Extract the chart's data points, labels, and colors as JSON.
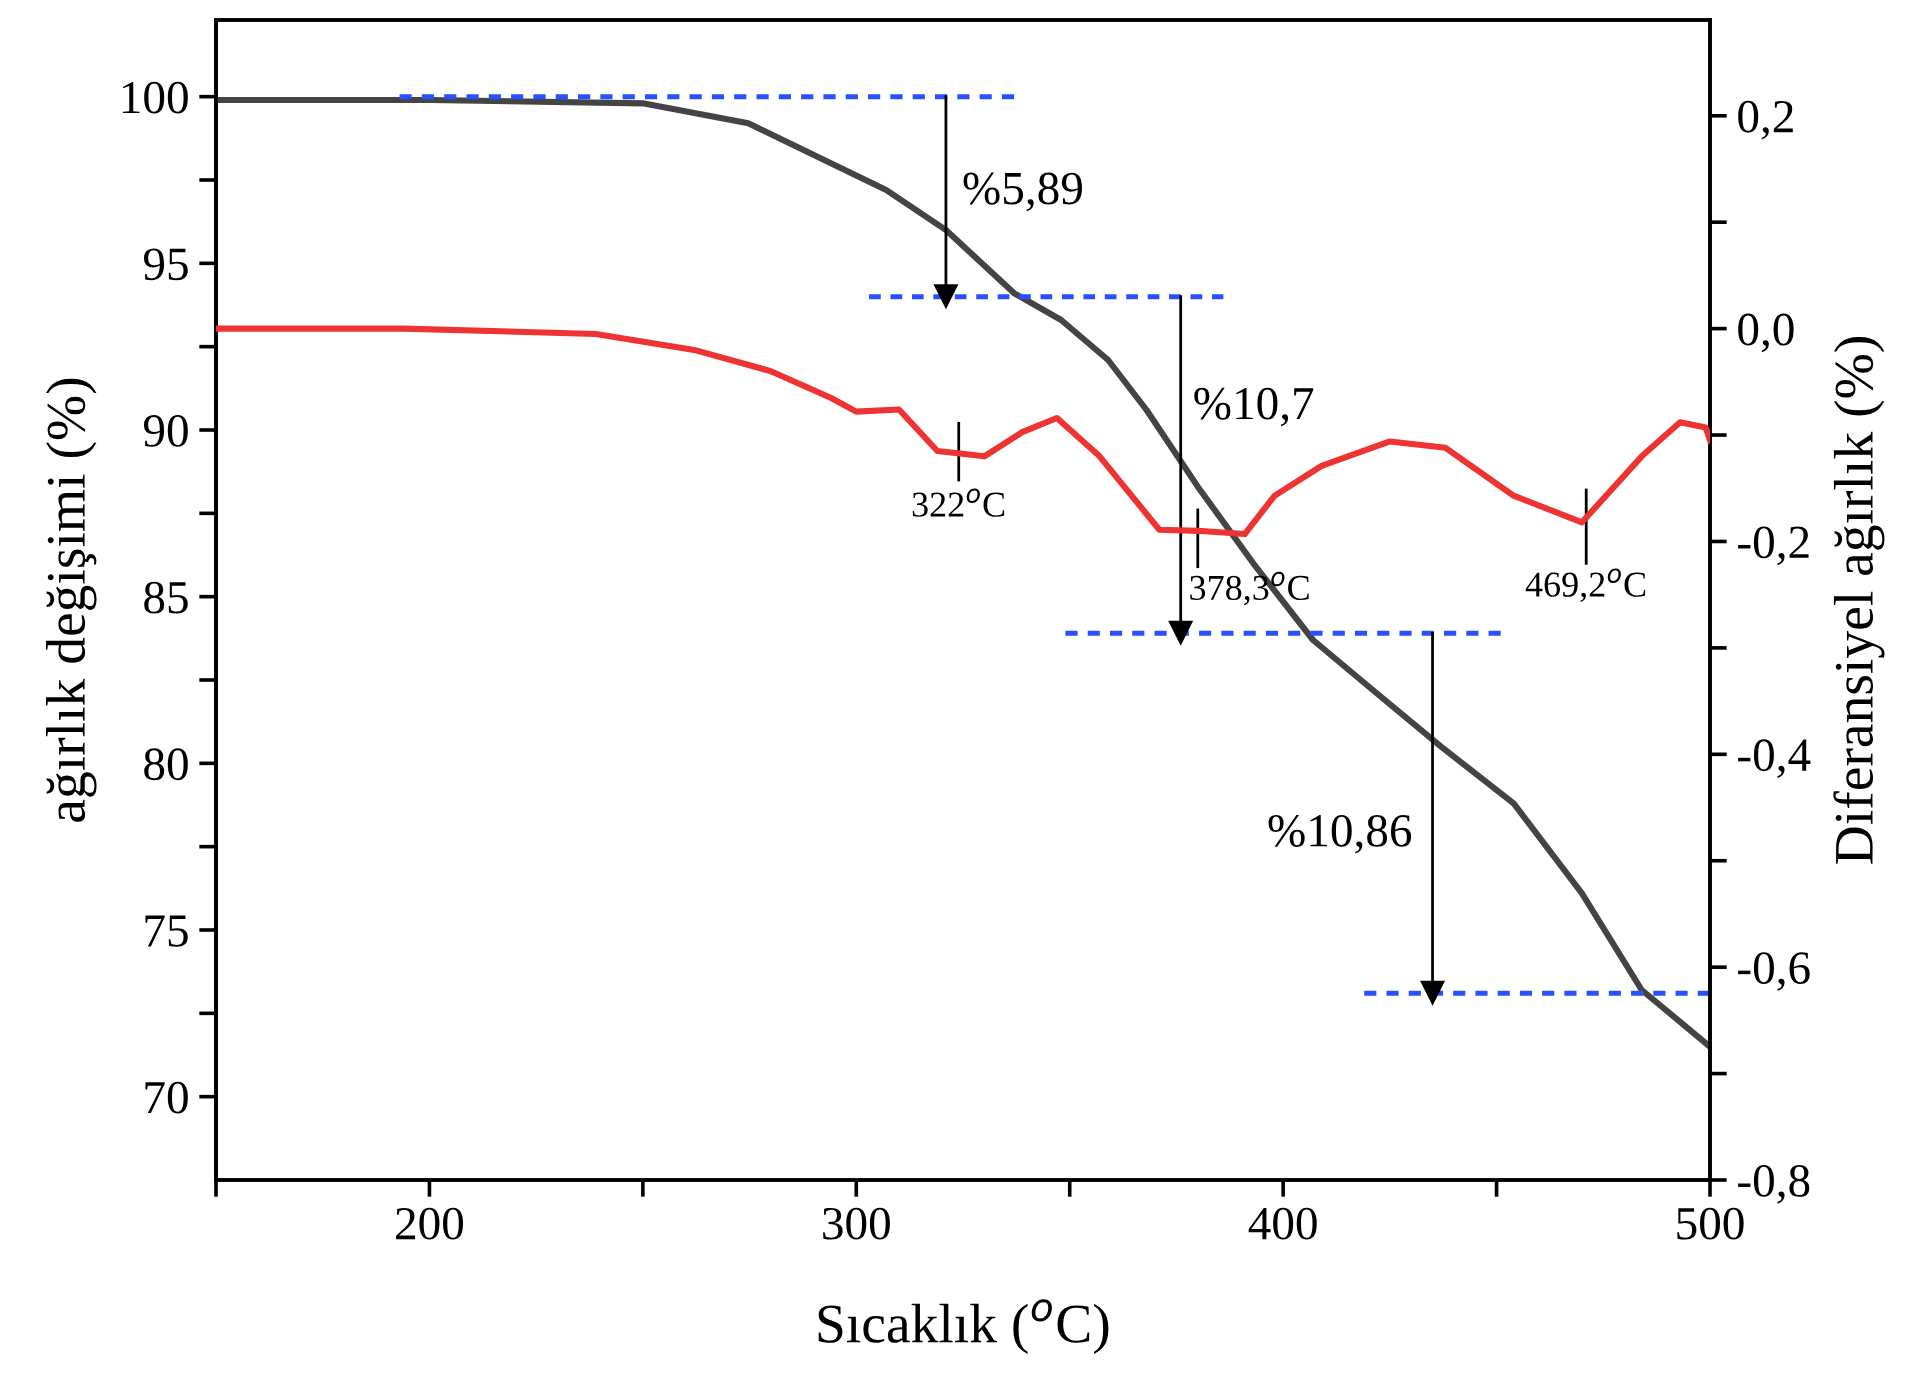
{
  "chart_data": {
    "type": "line",
    "xlabel": "Sıcaklık ($^{o}$C)",
    "ylabel": "ağırlık değişimi (%)",
    "y2label": "Diferansiyel ağırlık (%)",
    "xlim": [
      150,
      500
    ],
    "xticks": [
      {
        "value": 150,
        "label": null
      },
      200,
      {
        "value": 250,
        "label": null
      },
      300,
      {
        "value": 350,
        "label": null
      },
      400,
      {
        "value": 450,
        "label": null
      },
      500
    ],
    "ylim": [
      67.5,
      102.3
    ],
    "yticks": [
      70,
      {
        "value": 72.5,
        "label": null
      },
      75,
      {
        "value": 77.5,
        "label": null
      },
      80,
      {
        "value": 82.5,
        "label": null
      },
      85,
      {
        "value": 87.5,
        "label": null
      },
      90,
      {
        "value": 92.5,
        "label": null
      },
      95,
      {
        "value": 97.5,
        "label": null
      },
      100
    ],
    "y2lim": [
      -0.8,
      0.29
    ],
    "y2ticks": [
      {
        "value": -0.8,
        "label": "-0,8"
      },
      {
        "value": -0.7,
        "label": null
      },
      {
        "value": -0.6,
        "label": "-0,6"
      },
      {
        "value": -0.5,
        "label": null
      },
      {
        "value": -0.4,
        "label": "-0,4"
      },
      {
        "value": -0.3,
        "label": null
      },
      {
        "value": -0.2,
        "label": "-0,2"
      },
      {
        "value": -0.1,
        "label": null
      },
      {
        "value": 0.0,
        "label": "0,0"
      },
      {
        "value": 0.1,
        "label": null
      },
      {
        "value": 0.2,
        "label": "0,2"
      }
    ],
    "grid": false,
    "legend": false,
    "series": [
      {
        "color": "#444444",
        "x": [
          150,
          200,
          250,
          274.7,
          307,
          321,
          337,
          348,
          359,
          368,
          380,
          393,
          407,
          421,
          437,
          454,
          470,
          484,
          500
        ],
        "values": [
          99.9,
          99.9,
          99.8,
          99.2,
          97.2,
          96.0,
          94.1,
          93.3,
          92.1,
          90.6,
          88.3,
          86.0,
          83.7,
          82.2,
          80.5,
          78.8,
          76.1,
          73.2,
          71.5
        ]
      },
      {
        "color": "#ee3333",
        "axis": "y2",
        "x": [
          150,
          194,
          239,
          262,
          280,
          294,
          300,
          310,
          319,
          330,
          339,
          347,
          357,
          371,
          380,
          391,
          398,
          409,
          425,
          438,
          454,
          470,
          484,
          493,
          499,
          500
        ],
        "values": [
          0.0,
          0.0,
          -0.005,
          -0.02,
          -0.04,
          -0.065,
          -0.078,
          -0.076,
          -0.115,
          -0.12,
          -0.097,
          -0.084,
          -0.12,
          -0.189,
          -0.19,
          -0.193,
          -0.157,
          -0.129,
          -0.106,
          -0.112,
          -0.157,
          -0.182,
          -0.12,
          -0.088,
          -0.093,
          -0.105
        ]
      },
      {
        "color": "#2a4fff",
        "line_style": "dashed",
        "x": [
          193,
          337
        ],
        "values": [
          100,
          100
        ]
      },
      {
        "color": "#2a4fff",
        "line_style": "dashed",
        "x": [
          303,
          386
        ],
        "values": [
          94.0,
          94.0
        ]
      },
      {
        "color": "#2a4fff",
        "line_style": "dashed",
        "x": [
          349,
          451
        ],
        "values": [
          83.9,
          83.9
        ]
      },
      {
        "color": "#2a4fff",
        "line_style": "dashed",
        "x": [
          419,
          500
        ],
        "values": [
          73.1,
          73.1
        ]
      },
      {
        "color": "#000000",
        "marker": "triangle",
        "x": [
          321,
          321
        ],
        "values": [
          100,
          94.0
        ]
      },
      {
        "color": "#000000",
        "marker": "triangle",
        "x": [
          376,
          376
        ],
        "values": [
          94.0,
          83.9
        ]
      },
      {
        "color": "#000000",
        "marker": "triangle",
        "x": [
          435,
          435
        ],
        "values": [
          83.9,
          73.1
        ]
      },
      {
        "color": "#000000",
        "x": [
          324,
          324
        ],
        "values": [
          90.2,
          88.5
        ]
      },
      {
        "color": "#000000",
        "x": [
          380,
          380
        ],
        "values": [
          87.6,
          85.9
        ]
      },
      {
        "color": "#000000",
        "x": [
          471,
          471
        ],
        "values": [
          88.2,
          86.0
        ]
      }
    ],
    "annotations": [
      "%5,89",
      "%10,7",
      "%10,86",
      {
        "text": "322$^{o}$C",
        "x": 324,
        "y": 88.5
      },
      {
        "text": "378,3$^{o}$C",
        "x": 380,
        "y": 85.9
      },
      {
        "text": "469,2$^{o}$C",
        "x": 471,
        "y": 86.0
      }
    ]
  }
}
